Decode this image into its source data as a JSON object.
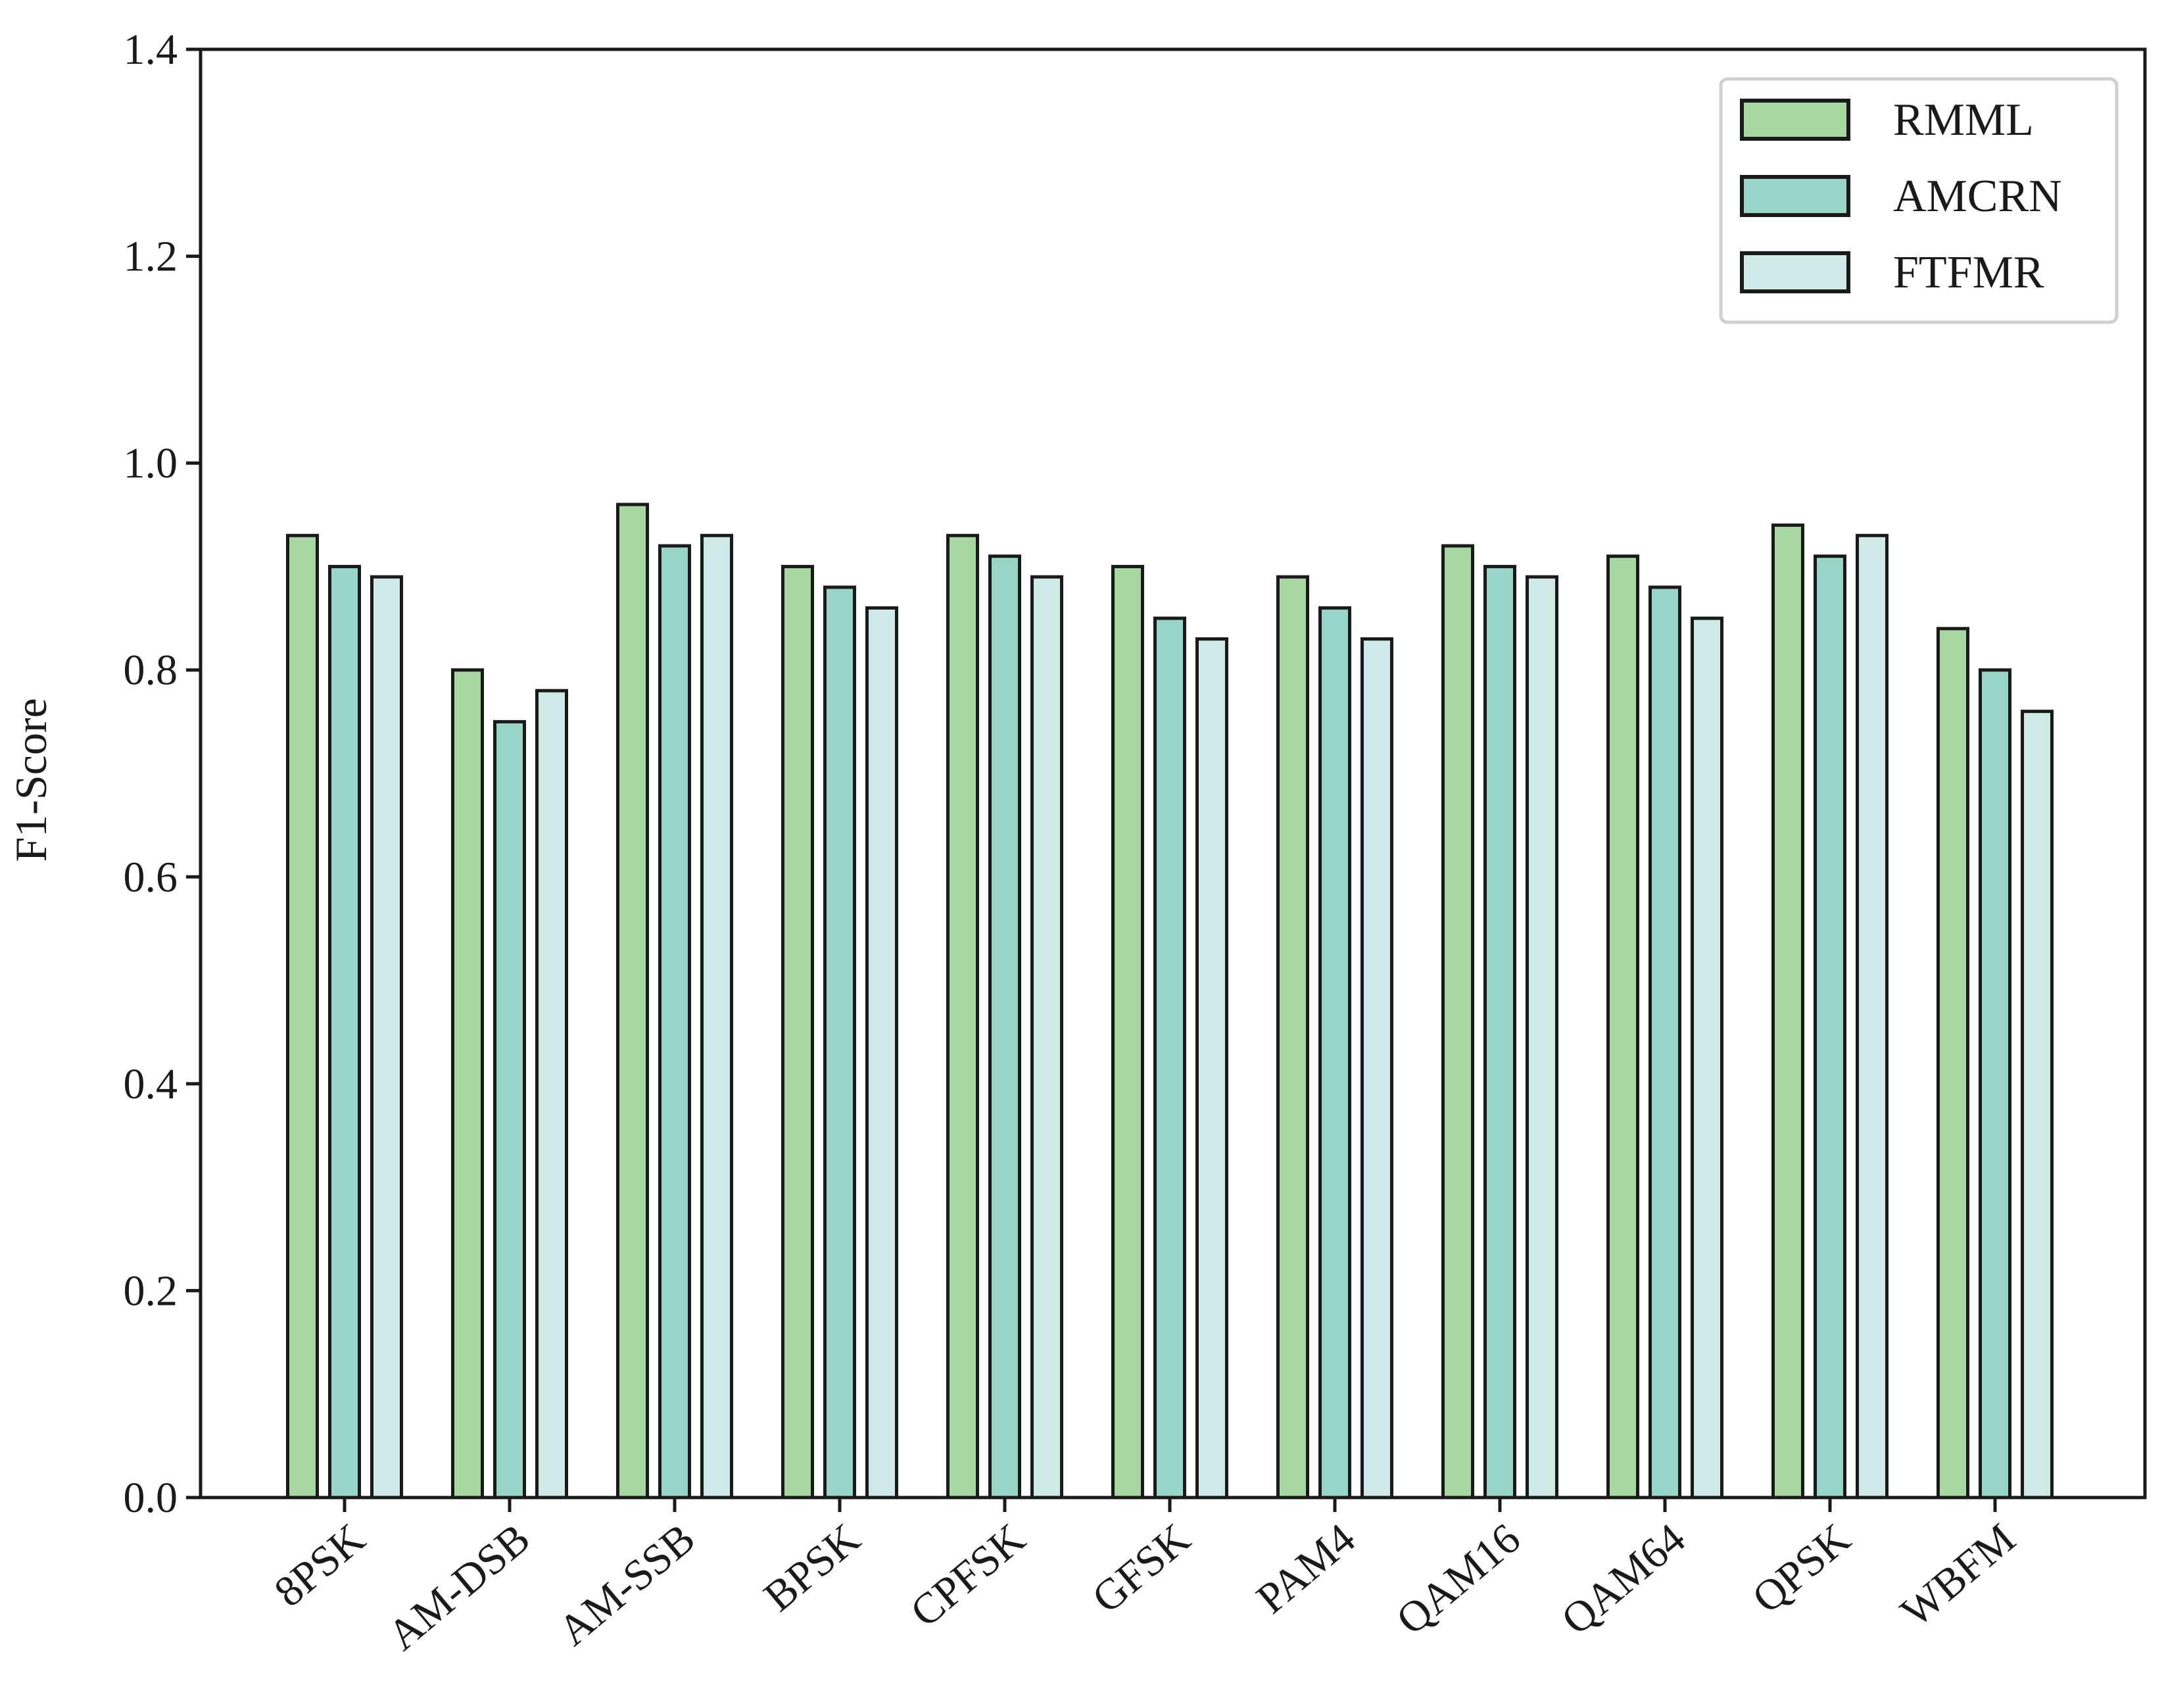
{
  "chart_data": {
    "type": "bar",
    "title": "",
    "xlabel": "",
    "ylabel": "F1-Score",
    "ylim": [
      0,
      1.4
    ],
    "yticks": [
      "0.0",
      "0.2",
      "0.4",
      "0.6",
      "0.8",
      "1.0",
      "1.2",
      "1.4"
    ],
    "grid": false,
    "legend_position": "top-right",
    "categories": [
      "8PSK",
      "AM-DSB",
      "AM-SSB",
      "BPSK",
      "CPFSK",
      "GFSK",
      "PAM4",
      "QAM16",
      "QAM64",
      "QPSK",
      "WBFM"
    ],
    "series": [
      {
        "name": "RMML",
        "color": "#a8d8a2",
        "values": [
          0.93,
          0.8,
          0.96,
          0.9,
          0.93,
          0.9,
          0.89,
          0.92,
          0.91,
          0.94,
          0.84
        ]
      },
      {
        "name": "AMCRN",
        "color": "#98d5c6",
        "values": [
          0.9,
          0.75,
          0.92,
          0.88,
          0.91,
          0.85,
          0.86,
          0.9,
          0.88,
          0.91,
          0.8
        ]
      },
      {
        "name": "FTFMR",
        "color": "#cfeae6",
        "values": [
          0.89,
          0.78,
          0.93,
          0.86,
          0.89,
          0.83,
          0.83,
          0.89,
          0.85,
          0.93,
          0.76
        ]
      }
    ],
    "edge_color": "#1a1a1a"
  }
}
